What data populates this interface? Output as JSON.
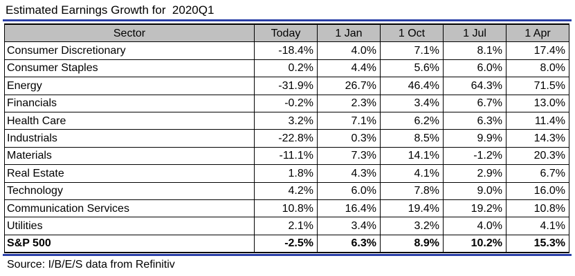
{
  "title": "Estimated Earnings Growth for  2020Q1",
  "source": "Source: I/B/E/S data from Refinitiv",
  "chart_data": {
    "type": "table",
    "title": "Estimated Earnings Growth for  2020Q1",
    "columns": [
      "Sector",
      "Today",
      "1 Jan",
      "1 Oct",
      "1 Jul",
      "1 Apr"
    ],
    "rows": [
      {
        "sector": "Consumer Discretionary",
        "values": [
          "-18.4%",
          "4.0%",
          "7.1%",
          "8.1%",
          "17.4%"
        ]
      },
      {
        "sector": "Consumer Staples",
        "values": [
          "0.2%",
          "4.4%",
          "5.6%",
          "6.0%",
          "8.0%"
        ]
      },
      {
        "sector": "Energy",
        "values": [
          "-31.9%",
          "26.7%",
          "46.4%",
          "64.3%",
          "71.5%"
        ]
      },
      {
        "sector": "Financials",
        "values": [
          "-0.2%",
          "2.3%",
          "3.4%",
          "6.7%",
          "13.0%"
        ]
      },
      {
        "sector": "Health Care",
        "values": [
          "3.2%",
          "7.1%",
          "6.2%",
          "6.3%",
          "11.4%"
        ]
      },
      {
        "sector": "Industrials",
        "values": [
          "-22.8%",
          "0.3%",
          "8.5%",
          "9.9%",
          "14.3%"
        ]
      },
      {
        "sector": "Materials",
        "values": [
          "-11.1%",
          "7.3%",
          "14.1%",
          "-1.2%",
          "20.3%"
        ]
      },
      {
        "sector": "Real Estate",
        "values": [
          "1.8%",
          "4.3%",
          "4.1%",
          "2.9%",
          "6.7%"
        ]
      },
      {
        "sector": "Technology",
        "values": [
          "4.2%",
          "6.0%",
          "7.8%",
          "9.0%",
          "16.0%"
        ]
      },
      {
        "sector": "Communication Services",
        "values": [
          "10.8%",
          "16.4%",
          "19.4%",
          "19.2%",
          "10.8%"
        ]
      },
      {
        "sector": "Utilities",
        "values": [
          "2.1%",
          "3.4%",
          "3.2%",
          "4.0%",
          "4.1%"
        ]
      }
    ],
    "total": {
      "sector": "S&P 500",
      "values": [
        "-2.5%",
        "6.3%",
        "8.9%",
        "10.2%",
        "15.3%"
      ]
    },
    "header_color": "#c0c0c0",
    "rule_color": "#2a3fa8"
  }
}
